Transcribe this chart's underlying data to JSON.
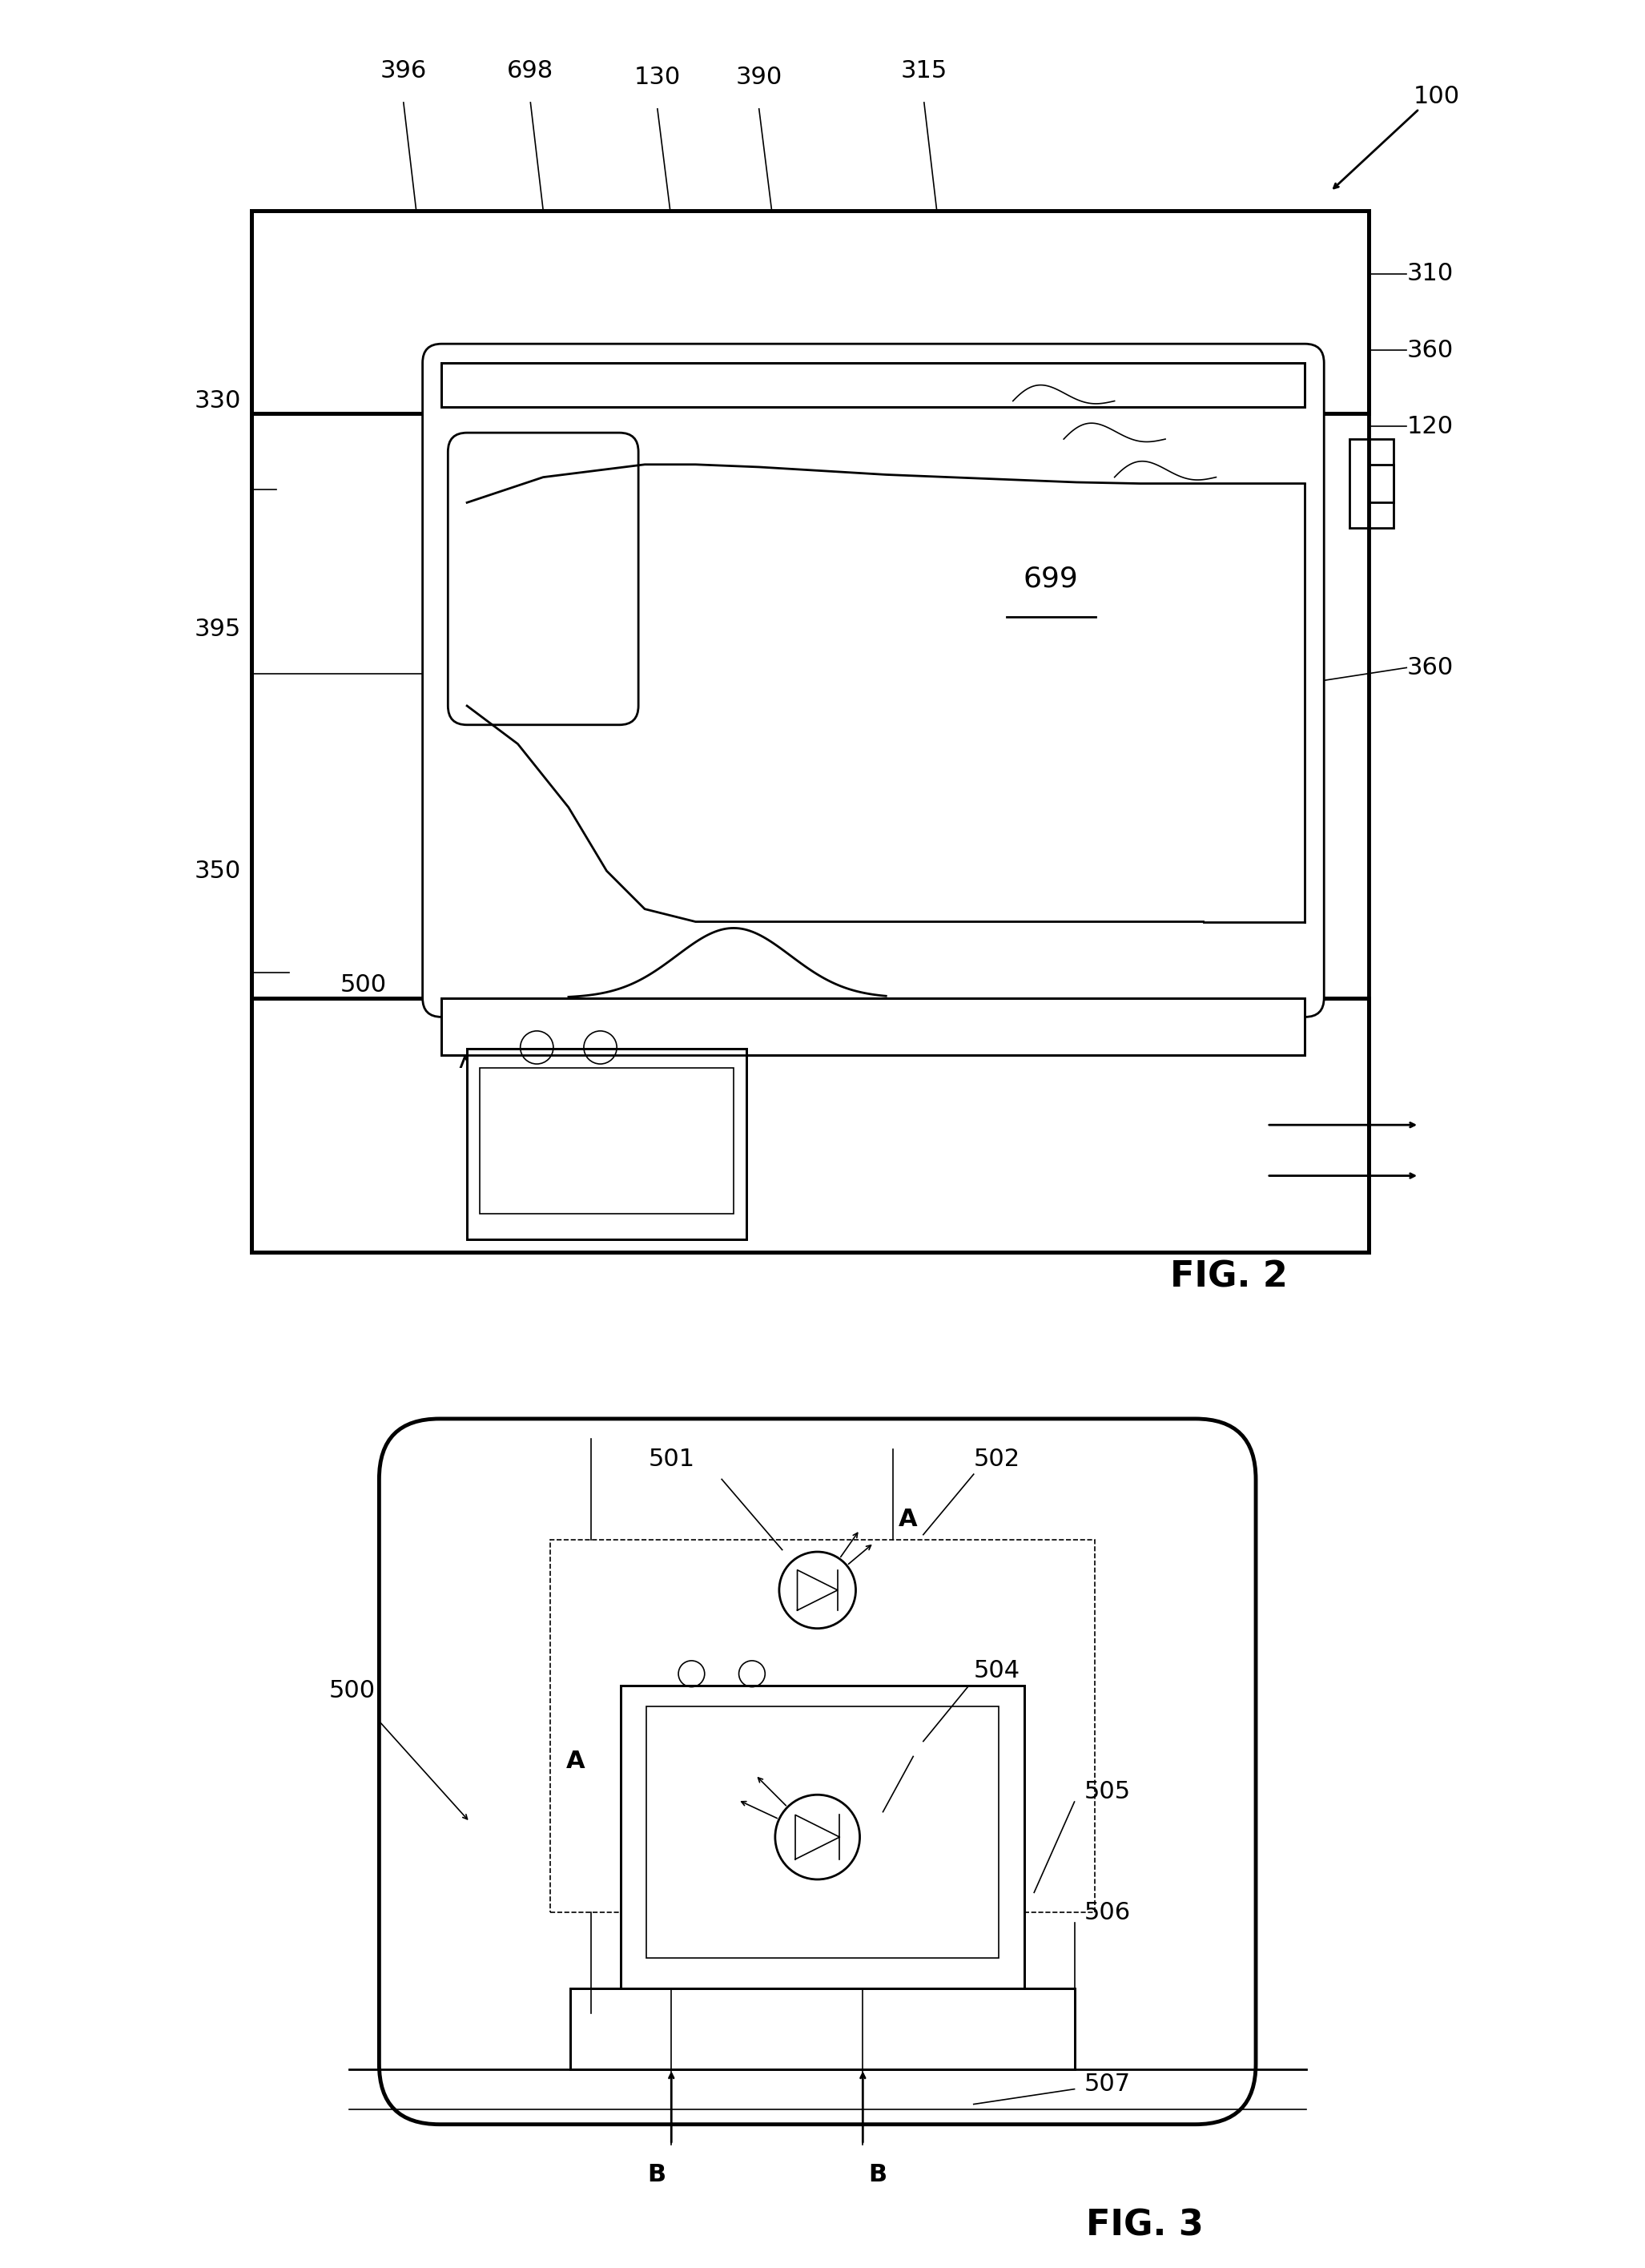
{
  "bg_color": "#ffffff",
  "line_color": "#000000",
  "fig2_title": "FIG. 2",
  "fig3_title": "FIG. 3",
  "label_fontsize": 22,
  "fig_label_fontsize": 32,
  "lw_thick": 3.5,
  "lw_med": 2.0,
  "lw_thin": 1.2
}
